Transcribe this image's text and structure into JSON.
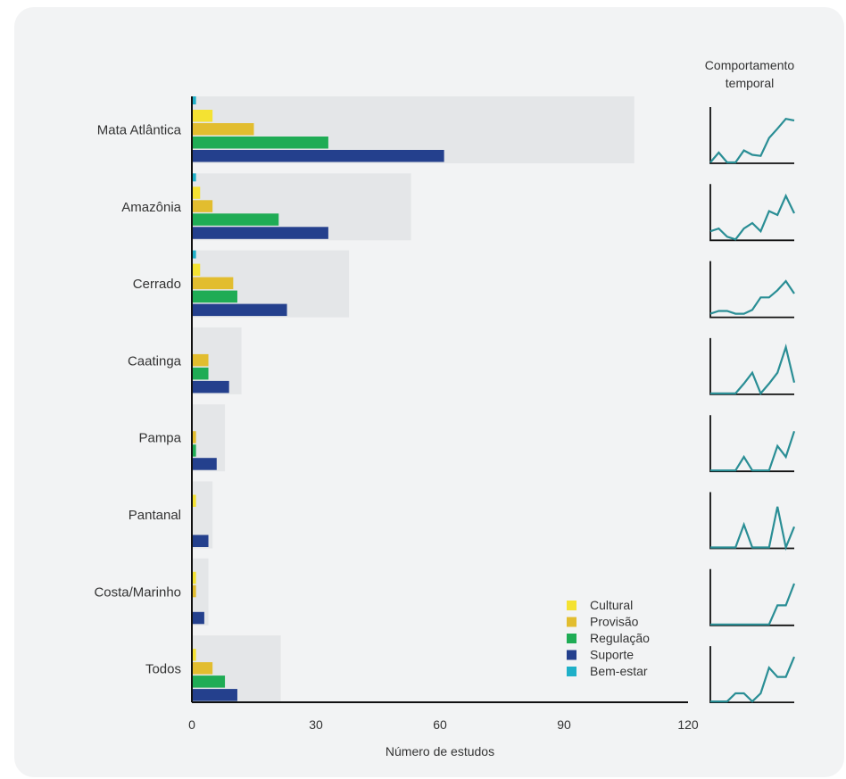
{
  "chart_data": {
    "type": "bar",
    "orientation": "horizontal",
    "categories": [
      "Mata Atlântica",
      "Amazônia",
      "Cerrado",
      "Caatinga",
      "Pampa",
      "Pantanal",
      "Costa/Marinho",
      "Todos"
    ],
    "totals": [
      107,
      53,
      38,
      12,
      8,
      5,
      4,
      21.5
    ],
    "series": [
      {
        "name": "Bem-estar",
        "color": "#1fb0c8",
        "values": [
          1,
          1,
          1,
          0,
          0,
          0,
          0,
          0
        ]
      },
      {
        "name": "Cultural",
        "color": "#f4e232",
        "values": [
          5,
          2,
          2,
          0,
          0,
          1,
          1,
          1
        ]
      },
      {
        "name": "Provisão",
        "color": "#e2bd2f",
        "values": [
          15,
          5,
          10,
          4,
          1,
          0,
          1,
          5
        ]
      },
      {
        "name": "Regulação",
        "color": "#1fac55",
        "values": [
          33,
          21,
          11,
          4,
          1,
          0,
          0,
          8
        ]
      },
      {
        "name": "Suporte",
        "color": "#24408d",
        "values": [
          61,
          33,
          23,
          9,
          6,
          4,
          3,
          11
        ]
      }
    ],
    "legend": {
      "placement": "bottom-right",
      "order": [
        "Cultural",
        "Provisão",
        "Regulação",
        "Suporte",
        "Bem-estar"
      ]
    },
    "xlabel": "Número de estudos",
    "xticks": [
      0,
      30,
      60,
      90,
      120
    ],
    "xlim": [
      0,
      120
    ],
    "total_bar_color": "#e4e6e8",
    "temporal": {
      "title_line1": "Comportamento",
      "title_line2": "temporal",
      "color": "#2a8e95",
      "series": [
        [
          0,
          0.18,
          0,
          0,
          0.22,
          0.14,
          0.12,
          0.45,
          0.62,
          0.8,
          0.77
        ],
        [
          0.15,
          0.2,
          0.05,
          0,
          0.2,
          0.3,
          0.15,
          0.52,
          0.45,
          0.8,
          0.48
        ],
        [
          0.05,
          0.1,
          0.1,
          0.05,
          0.05,
          0.12,
          0.35,
          0.35,
          0.48,
          0.65,
          0.42
        ],
        [
          0,
          0,
          0,
          0,
          0.18,
          0.38,
          0,
          0.18,
          0.38,
          0.85,
          0.2
        ],
        [
          0,
          0,
          0,
          0,
          0.25,
          0,
          0,
          0,
          0.45,
          0.25,
          0.72
        ],
        [
          0,
          0,
          0,
          0,
          0.42,
          0,
          0,
          0,
          0.75,
          0,
          0.38
        ],
        [
          0,
          0,
          0,
          0,
          0,
          0,
          0,
          0,
          0.35,
          0.35,
          0.75
        ],
        [
          0,
          0,
          0,
          0.15,
          0.15,
          0,
          0.15,
          0.62,
          0.45,
          0.45,
          0.82
        ]
      ]
    }
  }
}
